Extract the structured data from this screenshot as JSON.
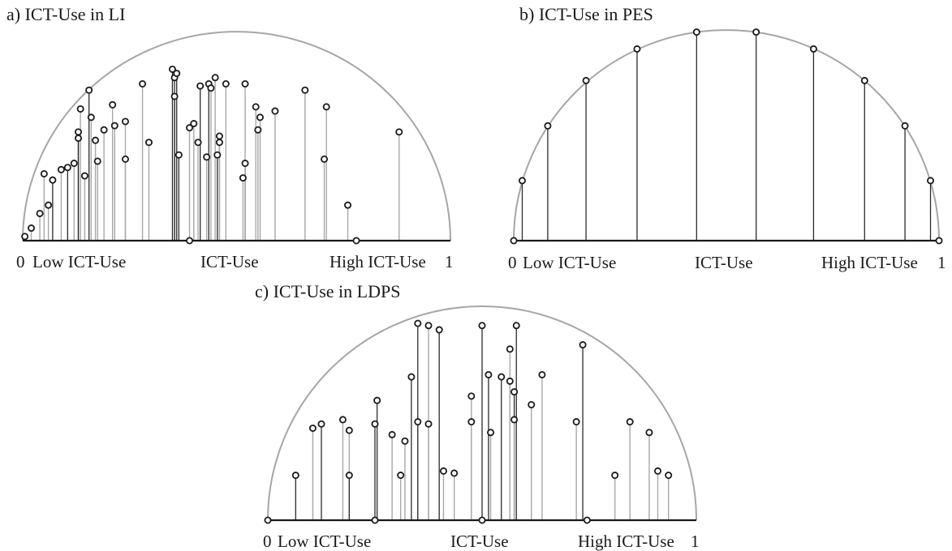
{
  "colors": {
    "arc": "#a6a6a6",
    "axis": "#1a1a1a",
    "stem_dark": "#2b2b2b",
    "stem_light": "#a8a8a8",
    "marker": "#1a1a1a"
  },
  "chart_data": [
    {
      "type": "scatter",
      "title": "a) ICT-Use in LI",
      "axis_labels": {
        "min": "0",
        "low": "Low ICT-Use",
        "mid": "ICT-Use",
        "high": "High ICT-Use",
        "max": "1"
      },
      "xlim": [
        0,
        1
      ],
      "ylim": [
        0,
        1
      ],
      "points": [
        {
          "x": 0.005,
          "y": 0.02
        },
        {
          "x": 0.02,
          "y": 0.06
        },
        {
          "x": 0.04,
          "y": 0.13
        },
        {
          "x": 0.05,
          "y": 0.32
        },
        {
          "x": 0.06,
          "y": 0.17
        },
        {
          "x": 0.07,
          "y": 0.29
        },
        {
          "x": 0.09,
          "y": 0.34
        },
        {
          "x": 0.105,
          "y": 0.35
        },
        {
          "x": 0.12,
          "y": 0.37
        },
        {
          "x": 0.13,
          "y": 0.49
        },
        {
          "x": 0.13,
          "y": 0.52
        },
        {
          "x": 0.135,
          "y": 0.63
        },
        {
          "x": 0.145,
          "y": 0.31
        },
        {
          "x": 0.155,
          "y": 0.72
        },
        {
          "x": 0.16,
          "y": 0.59
        },
        {
          "x": 0.17,
          "y": 0.48
        },
        {
          "x": 0.175,
          "y": 0.38
        },
        {
          "x": 0.19,
          "y": 0.53
        },
        {
          "x": 0.21,
          "y": 0.65
        },
        {
          "x": 0.215,
          "y": 0.55
        },
        {
          "x": 0.24,
          "y": 0.39
        },
        {
          "x": 0.24,
          "y": 0.57
        },
        {
          "x": 0.28,
          "y": 0.75
        },
        {
          "x": 0.295,
          "y": 0.47
        },
        {
          "x": 0.35,
          "y": 0.82
        },
        {
          "x": 0.355,
          "y": 0.78
        },
        {
          "x": 0.36,
          "y": 0.8
        },
        {
          "x": 0.355,
          "y": 0.69
        },
        {
          "x": 0.365,
          "y": 0.41
        },
        {
          "x": 0.39,
          "y": 0.54
        },
        {
          "x": 0.39,
          "y": 0.0
        },
        {
          "x": 0.4,
          "y": 0.56
        },
        {
          "x": 0.41,
          "y": 0.47
        },
        {
          "x": 0.415,
          "y": 0.74
        },
        {
          "x": 0.43,
          "y": 0.4
        },
        {
          "x": 0.435,
          "y": 0.75
        },
        {
          "x": 0.44,
          "y": 0.73
        },
        {
          "x": 0.45,
          "y": 0.78
        },
        {
          "x": 0.455,
          "y": 0.41
        },
        {
          "x": 0.46,
          "y": 0.5
        },
        {
          "x": 0.46,
          "y": 0.47
        },
        {
          "x": 0.475,
          "y": 0.75
        },
        {
          "x": 0.515,
          "y": 0.3
        },
        {
          "x": 0.52,
          "y": 0.37
        },
        {
          "x": 0.52,
          "y": 0.75
        },
        {
          "x": 0.545,
          "y": 0.64
        },
        {
          "x": 0.55,
          "y": 0.53
        },
        {
          "x": 0.555,
          "y": 0.59
        },
        {
          "x": 0.59,
          "y": 0.62
        },
        {
          "x": 0.66,
          "y": 0.72
        },
        {
          "x": 0.705,
          "y": 0.39
        },
        {
          "x": 0.71,
          "y": 0.64
        },
        {
          "x": 0.76,
          "y": 0.17
        },
        {
          "x": 0.78,
          "y": 0.0
        },
        {
          "x": 0.88,
          "y": 0.52
        }
      ]
    },
    {
      "type": "scatter",
      "title": "b) ICT-Use in PES",
      "axis_labels": {
        "min": "0",
        "low": "Low ICT-Use",
        "mid": "ICT-Use",
        "high": "High ICT-Use",
        "max": "1"
      },
      "xlim": [
        0,
        1
      ],
      "ylim": [
        0,
        1
      ],
      "points": [
        {
          "x": 0.0,
          "y": 0.0
        },
        {
          "x": 0.02,
          "y": 0.285
        },
        {
          "x": 0.08,
          "y": 0.545
        },
        {
          "x": 0.17,
          "y": 0.76
        },
        {
          "x": 0.29,
          "y": 0.91
        },
        {
          "x": 0.43,
          "y": 0.99
        },
        {
          "x": 0.57,
          "y": 0.99
        },
        {
          "x": 0.705,
          "y": 0.91
        },
        {
          "x": 0.825,
          "y": 0.76
        },
        {
          "x": 0.92,
          "y": 0.545
        },
        {
          "x": 0.98,
          "y": 0.285
        },
        {
          "x": 1.0,
          "y": 0.0
        }
      ]
    },
    {
      "type": "scatter",
      "title": "c) ICT-Use in LDPS",
      "axis_labels": {
        "min": "0",
        "low": "Low ICT-Use",
        "mid": "ICT-Use",
        "high": "High ICT-Use",
        "max": "1"
      },
      "xlim": [
        0,
        1
      ],
      "ylim": [
        0,
        1
      ],
      "points": [
        {
          "x": 0.0,
          "y": 0.0
        },
        {
          "x": 0.065,
          "y": 0.21
        },
        {
          "x": 0.105,
          "y": 0.43
        },
        {
          "x": 0.125,
          "y": 0.45
        },
        {
          "x": 0.175,
          "y": 0.47
        },
        {
          "x": 0.19,
          "y": 0.42
        },
        {
          "x": 0.19,
          "y": 0.21
        },
        {
          "x": 0.25,
          "y": 0.0
        },
        {
          "x": 0.25,
          "y": 0.45
        },
        {
          "x": 0.255,
          "y": 0.56
        },
        {
          "x": 0.29,
          "y": 0.4
        },
        {
          "x": 0.31,
          "y": 0.21
        },
        {
          "x": 0.32,
          "y": 0.37
        },
        {
          "x": 0.335,
          "y": 0.67
        },
        {
          "x": 0.35,
          "y": 0.46
        },
        {
          "x": 0.35,
          "y": 0.92
        },
        {
          "x": 0.375,
          "y": 0.91
        },
        {
          "x": 0.375,
          "y": 0.45
        },
        {
          "x": 0.4,
          "y": 0.89
        },
        {
          "x": 0.41,
          "y": 0.23
        },
        {
          "x": 0.435,
          "y": 0.22
        },
        {
          "x": 0.475,
          "y": 0.46
        },
        {
          "x": 0.475,
          "y": 0.58
        },
        {
          "x": 0.5,
          "y": 0.0
        },
        {
          "x": 0.5,
          "y": 0.91
        },
        {
          "x": 0.515,
          "y": 0.68
        },
        {
          "x": 0.52,
          "y": 0.41
        },
        {
          "x": 0.545,
          "y": 0.67
        },
        {
          "x": 0.565,
          "y": 0.8
        },
        {
          "x": 0.565,
          "y": 0.65
        },
        {
          "x": 0.575,
          "y": 0.6
        },
        {
          "x": 0.575,
          "y": 0.47
        },
        {
          "x": 0.58,
          "y": 0.91
        },
        {
          "x": 0.615,
          "y": 0.54
        },
        {
          "x": 0.64,
          "y": 0.68
        },
        {
          "x": 0.72,
          "y": 0.46
        },
        {
          "x": 0.735,
          "y": 0.82
        },
        {
          "x": 0.745,
          "y": 0.0
        },
        {
          "x": 0.81,
          "y": 0.21
        },
        {
          "x": 0.845,
          "y": 0.46
        },
        {
          "x": 0.89,
          "y": 0.41
        },
        {
          "x": 0.91,
          "y": 0.23
        },
        {
          "x": 0.935,
          "y": 0.21
        }
      ]
    }
  ]
}
